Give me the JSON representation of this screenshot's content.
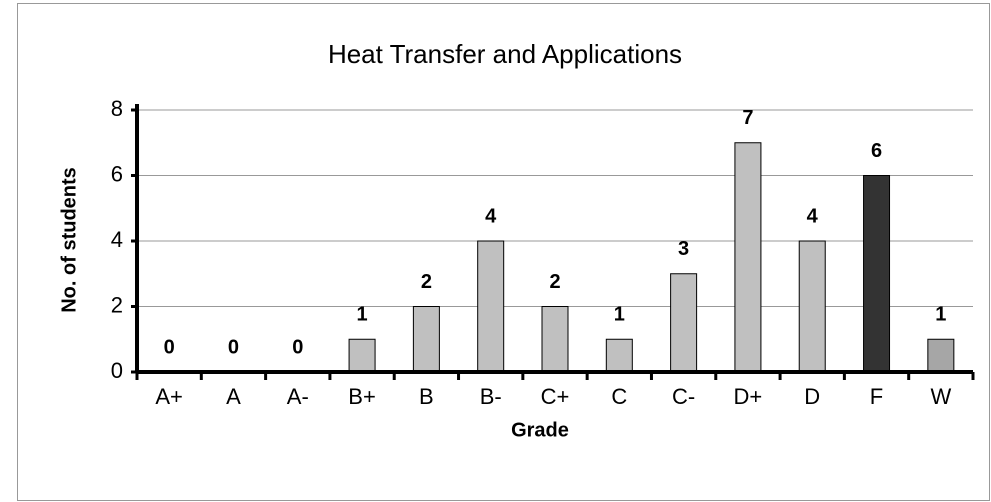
{
  "chart_data": {
    "type": "bar",
    "title": "Heat Transfer and Applications",
    "x_label": "Grade",
    "y_label": "No. of students",
    "categories": [
      "A+",
      "A",
      "A-",
      "B+",
      "B",
      "B-",
      "C+",
      "C",
      "C-",
      "D+",
      "D",
      "F",
      "W"
    ],
    "values": [
      0,
      0,
      0,
      1,
      2,
      4,
      2,
      1,
      3,
      7,
      4,
      6,
      1
    ],
    "colors": [
      "#c0c0c0",
      "#c0c0c0",
      "#c0c0c0",
      "#c0c0c0",
      "#c0c0c0",
      "#c0c0c0",
      "#c0c0c0",
      "#c0c0c0",
      "#c0c0c0",
      "#c0c0c0",
      "#c0c0c0",
      "#333333",
      "#a6a6a6"
    ],
    "ylim": [
      0,
      8
    ],
    "yticks": [
      0,
      2,
      4,
      6,
      8
    ],
    "grid": true
  }
}
